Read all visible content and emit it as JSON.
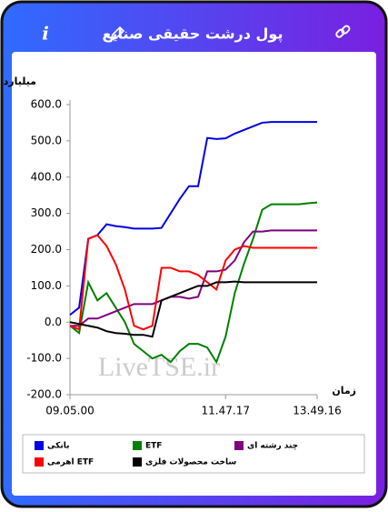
{
  "header": {
    "title": "پول درشت حقیقی صنایع",
    "info": "i"
  },
  "chart_data": {
    "type": "line",
    "y_label": "میلیارد تومان",
    "x_label": "زمان",
    "watermark": "LiveTSE.ir",
    "categories": [
      "09.05.00",
      null,
      null,
      null,
      null,
      null,
      null,
      null,
      null,
      null,
      null,
      null,
      null,
      null,
      null,
      null,
      null,
      "11.47.17",
      null,
      null,
      null,
      null,
      null,
      null,
      null,
      null,
      null,
      "13.49.16"
    ],
    "ylim": [
      -200,
      600
    ],
    "yticks": [
      {
        "value": 600,
        "label": "600.0"
      },
      {
        "value": 500,
        "label": "500.0"
      },
      {
        "value": 400,
        "label": "400.0"
      },
      {
        "value": 300,
        "label": "300.0"
      },
      {
        "value": 200,
        "label": "200.0"
      },
      {
        "value": 100,
        "label": "100.0"
      },
      {
        "value": 0,
        "label": "0.0"
      },
      {
        "value": -100,
        "label": "-100.0"
      },
      {
        "value": -200,
        "label": "-200.0"
      }
    ],
    "series": [
      {
        "name": "بانکی",
        "color": "#0000e6",
        "values": [
          20,
          40,
          230,
          240,
          270,
          265,
          262,
          258,
          258,
          258,
          260,
          300,
          340,
          375,
          375,
          508,
          505,
          507,
          520,
          530,
          540,
          550,
          552,
          552,
          552,
          552,
          552,
          552
        ]
      },
      {
        "name": "ETF",
        "color": "#008000",
        "values": [
          -10,
          -30,
          110,
          60,
          80,
          40,
          0,
          -60,
          -80,
          -100,
          -90,
          -110,
          -80,
          -60,
          -60,
          -70,
          -110,
          -40,
          80,
          160,
          230,
          310,
          325,
          325,
          325,
          325,
          328,
          330
        ]
      },
      {
        "name": "چند رشته ای",
        "color": "#800080",
        "values": [
          -10,
          -10,
          10,
          10,
          20,
          30,
          40,
          50,
          50,
          50,
          60,
          70,
          70,
          65,
          70,
          140,
          140,
          145,
          170,
          220,
          250,
          250,
          253,
          253,
          253,
          253,
          253,
          253
        ]
      },
      {
        "name": "اهرمی ETF",
        "color": "#ff0000",
        "values": [
          -10,
          -20,
          230,
          240,
          210,
          160,
          90,
          -10,
          -20,
          -10,
          150,
          150,
          140,
          140,
          130,
          110,
          90,
          170,
          200,
          210,
          205,
          205,
          205,
          205,
          205,
          205,
          205,
          205
        ]
      },
      {
        "name": "ساخت محصولات فلزی",
        "color": "#000000",
        "values": [
          0,
          -5,
          -10,
          -15,
          -25,
          -30,
          -32,
          -35,
          -35,
          -40,
          60,
          70,
          80,
          90,
          100,
          100,
          110,
          110,
          112,
          110,
          110,
          110,
          110,
          110,
          110,
          110,
          110,
          110
        ]
      }
    ]
  }
}
